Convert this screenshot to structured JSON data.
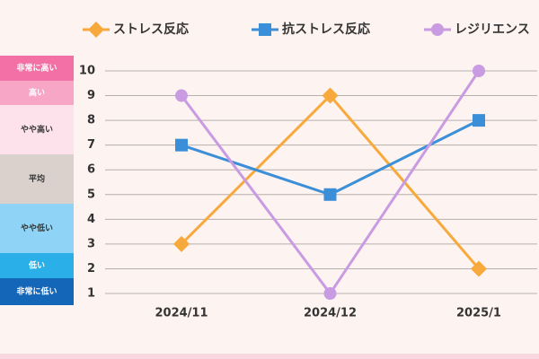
{
  "chart_data": {
    "type": "line",
    "categories": [
      "2024/11",
      "2024/12",
      "2025/1"
    ],
    "series": [
      {
        "name": "ストレス反応",
        "color": "#f7a93b",
        "marker": "diamond",
        "values": [
          3,
          9,
          2
        ]
      },
      {
        "name": "抗ストレス反応",
        "color": "#3b8fd8",
        "marker": "square",
        "values": [
          7,
          5,
          8
        ]
      },
      {
        "name": "レジリエンス",
        "color": "#c89be2",
        "marker": "circle",
        "values": [
          9,
          1,
          10
        ]
      }
    ],
    "ylim": [
      1,
      10
    ],
    "yticks": [
      1,
      2,
      3,
      4,
      5,
      6,
      7,
      8,
      9,
      10
    ],
    "grid": true,
    "levels": [
      {
        "label": "非常に高い",
        "color": "#f270a5",
        "text_color": "#ffffff"
      },
      {
        "label": "高い",
        "color": "#f7a6c6",
        "text_color": "#ffffff"
      },
      {
        "label": "やや高い",
        "color": "#fde2ec",
        "text_color": "#333333"
      },
      {
        "label": "平均",
        "color": "#dad1cc",
        "text_color": "#333333"
      },
      {
        "label": "やや低い",
        "color": "#8fd4f6",
        "text_color": "#333333"
      },
      {
        "label": "低い",
        "color": "#2aafe9",
        "text_color": "#ffffff"
      },
      {
        "label": "非常に低い",
        "color": "#1466b9",
        "text_color": "#ffffff"
      }
    ]
  }
}
